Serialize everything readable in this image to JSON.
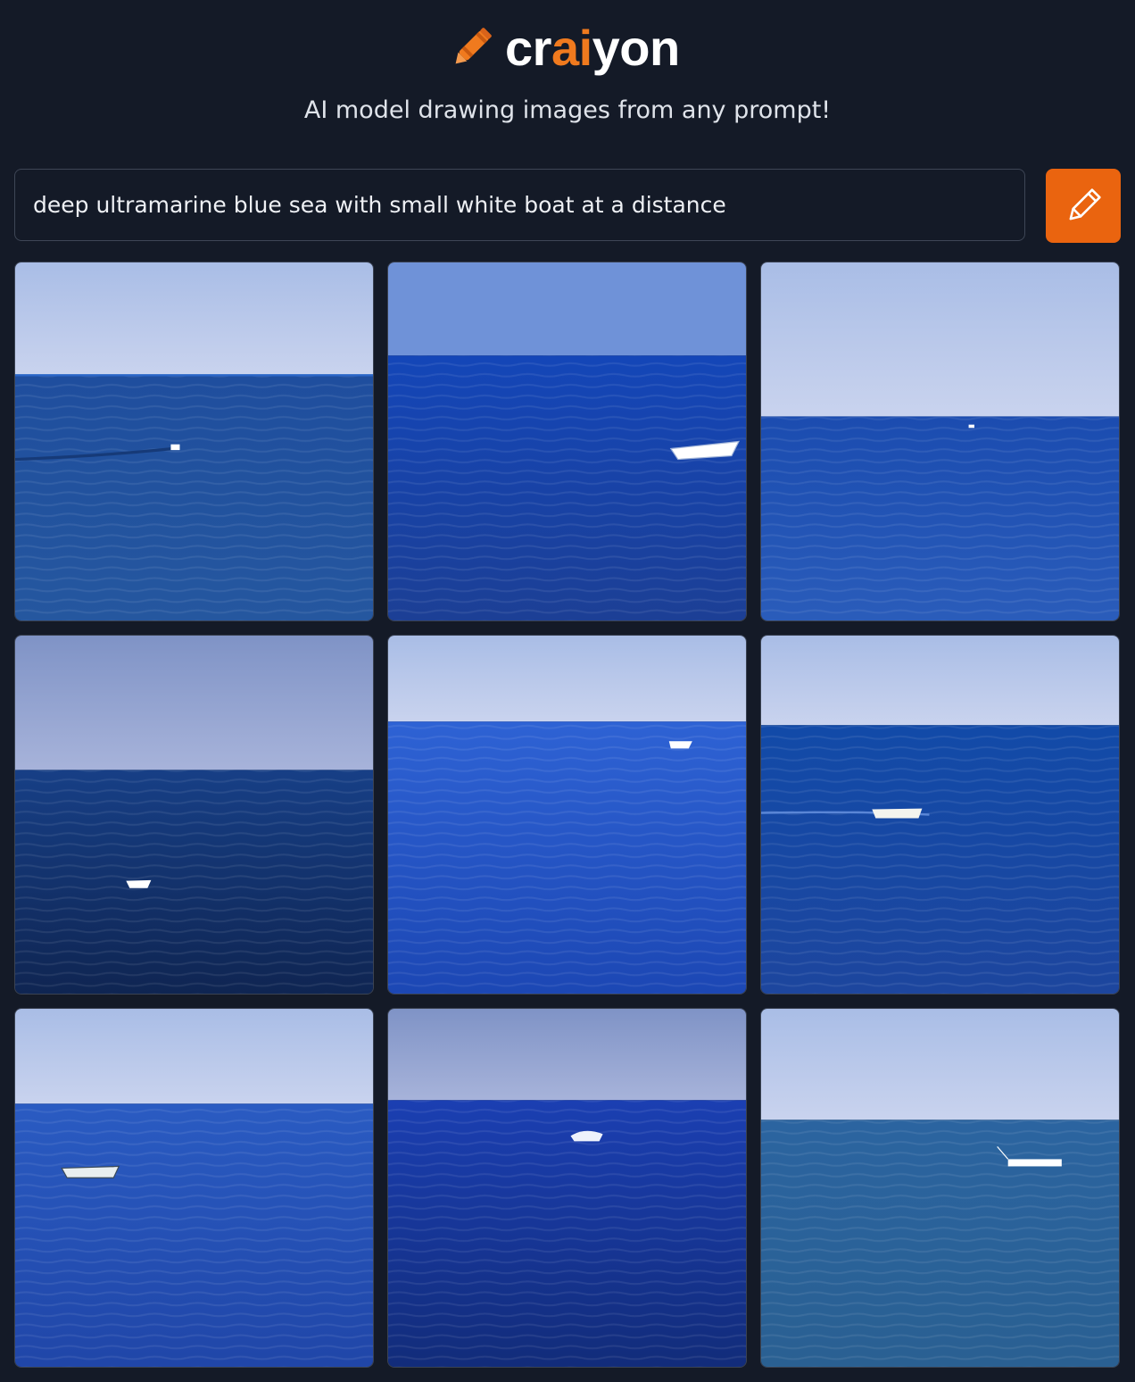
{
  "header": {
    "logo": [
      "cr",
      "ai",
      "yon"
    ],
    "subtitle": "AI model drawing images from any prompt!"
  },
  "prompt": {
    "text": "deep ultramarine blue sea with small white boat at a distance"
  }
}
